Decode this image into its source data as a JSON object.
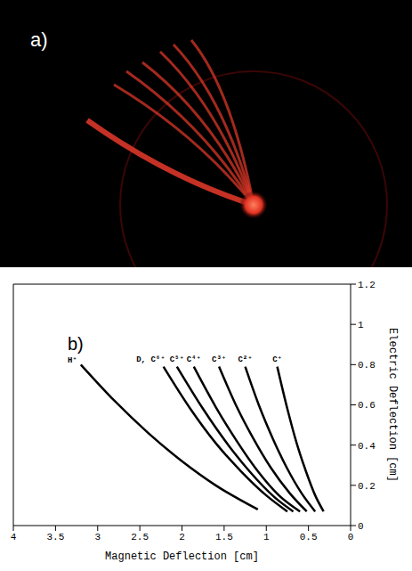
{
  "photo": {
    "label": "a)"
  },
  "chart_data": {
    "type": "line",
    "panel_label": "b)",
    "x_label": "Magnetic Deflection [cm]",
    "y_label": "Electric Deflection [cm]",
    "xlim": [
      0,
      4
    ],
    "xticks": [
      4,
      3.5,
      3,
      2.5,
      2,
      1.5,
      1,
      0.5,
      0
    ],
    "ylim": [
      0,
      1.2
    ],
    "yticks": [
      0,
      0.2,
      0.4,
      0.6,
      0.8,
      1,
      1.2
    ],
    "grid": false,
    "series": [
      {
        "name": "H⁺",
        "color": "#000000",
        "x": [
          3.2,
          2.8,
          2.4,
          2.0,
          1.6,
          1.1
        ],
        "values": [
          0.8,
          0.62,
          0.46,
          0.32,
          0.2,
          0.08
        ]
      },
      {
        "name": "D, C⁶⁺",
        "color": "#000000",
        "x": [
          2.22,
          1.9,
          1.6,
          1.3,
          1.0,
          0.75
        ],
        "values": [
          0.79,
          0.58,
          0.41,
          0.27,
          0.15,
          0.07
        ]
      },
      {
        "name": "C⁵⁺",
        "color": "#000000",
        "x": [
          2.06,
          1.75,
          1.45,
          1.2,
          0.9,
          0.68
        ],
        "values": [
          0.79,
          0.58,
          0.4,
          0.27,
          0.14,
          0.07
        ]
      },
      {
        "name": "C⁴⁺",
        "color": "#000000",
        "x": [
          1.86,
          1.6,
          1.35,
          1.1,
          0.85,
          0.6
        ],
        "values": [
          0.79,
          0.59,
          0.42,
          0.27,
          0.15,
          0.07
        ]
      },
      {
        "name": "C³⁺",
        "color": "#000000",
        "x": [
          1.56,
          1.35,
          1.15,
          0.95,
          0.72,
          0.52
        ],
        "values": [
          0.79,
          0.59,
          0.43,
          0.29,
          0.16,
          0.07
        ]
      },
      {
        "name": "C²⁺",
        "color": "#000000",
        "x": [
          1.25,
          1.08,
          0.92,
          0.76,
          0.58,
          0.42
        ],
        "values": [
          0.79,
          0.59,
          0.43,
          0.29,
          0.16,
          0.07
        ]
      },
      {
        "name": "C⁺",
        "color": "#000000",
        "x": [
          0.87,
          0.75,
          0.64,
          0.53,
          0.42,
          0.32
        ],
        "values": [
          0.79,
          0.58,
          0.41,
          0.27,
          0.15,
          0.07
        ]
      }
    ]
  }
}
